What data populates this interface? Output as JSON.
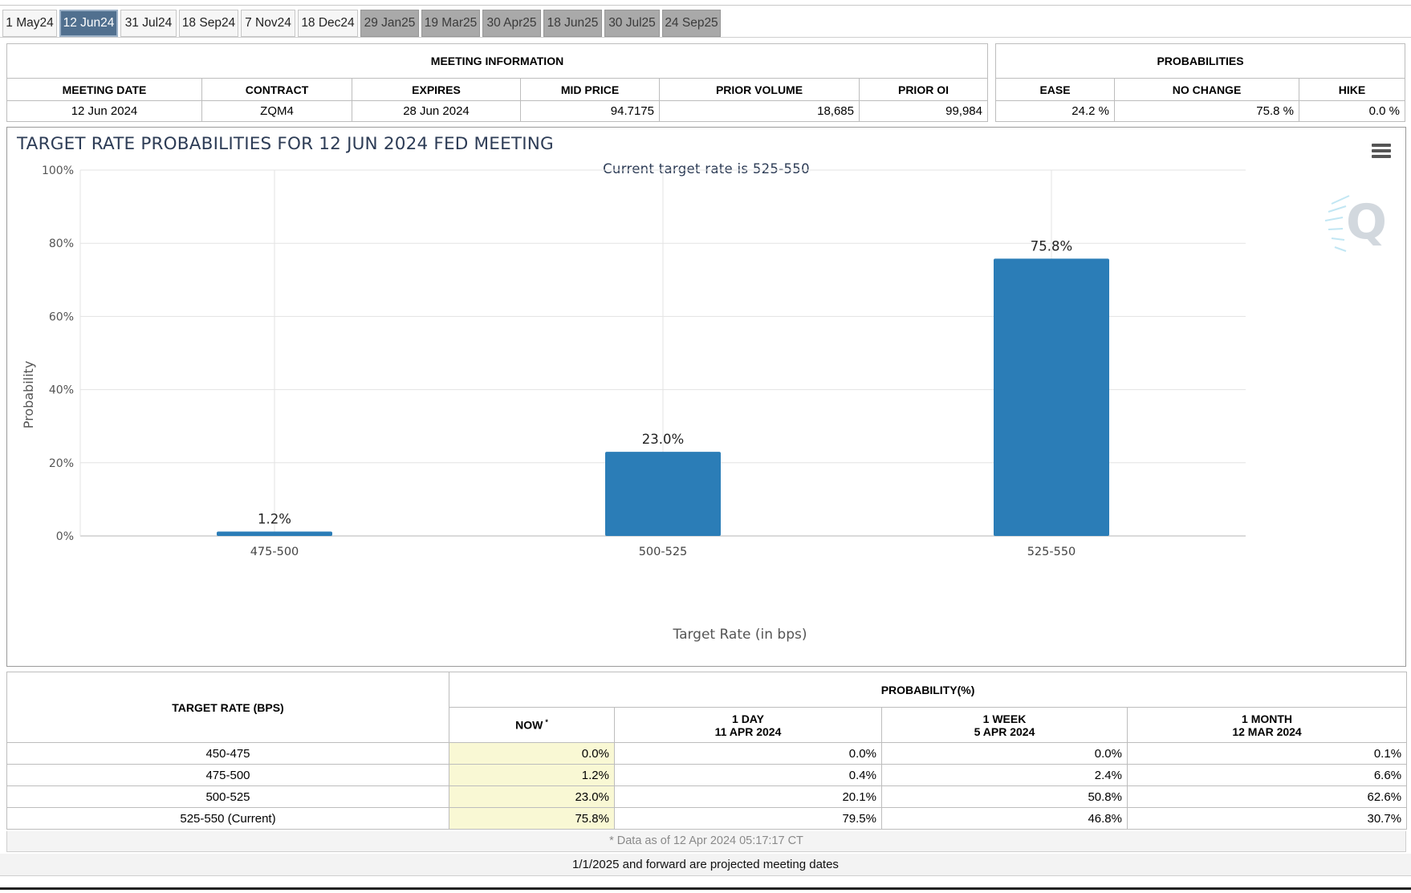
{
  "tabs": [
    {
      "label": "1 May24",
      "state": "normal"
    },
    {
      "label": "12 Jun24",
      "state": "active"
    },
    {
      "label": "31 Jul24",
      "state": "normal"
    },
    {
      "label": "18 Sep24",
      "state": "normal"
    },
    {
      "label": "7 Nov24",
      "state": "normal"
    },
    {
      "label": "18 Dec24",
      "state": "normal"
    },
    {
      "label": "29 Jan25",
      "state": "future"
    },
    {
      "label": "19 Mar25",
      "state": "future"
    },
    {
      "label": "30 Apr25",
      "state": "future"
    },
    {
      "label": "18 Jun25",
      "state": "future"
    },
    {
      "label": "30 Jul25",
      "state": "future"
    },
    {
      "label": "24 Sep25",
      "state": "future"
    }
  ],
  "meeting_info": {
    "title": "MEETING INFORMATION",
    "headers": [
      "MEETING DATE",
      "CONTRACT",
      "EXPIRES",
      "MID PRICE",
      "PRIOR VOLUME",
      "PRIOR OI"
    ],
    "values": [
      "12 Jun 2024",
      "ZQM4",
      "28 Jun 2024",
      "94.7175",
      "18,685",
      "99,984"
    ]
  },
  "probabilities": {
    "title": "PROBABILITIES",
    "headers": [
      "EASE",
      "NO CHANGE",
      "HIKE"
    ],
    "values": [
      "24.2 %",
      "75.8 %",
      "0.0 %"
    ]
  },
  "chart": {
    "title": "TARGET RATE PROBABILITIES FOR 12 JUN 2024 FED MEETING",
    "subtitle": "Current target rate is 525-550",
    "menu_icon": "hamburger-menu-icon",
    "watermark_icon": "cme-q-logo-icon"
  },
  "chart_data": {
    "type": "bar",
    "title": "TARGET RATE PROBABILITIES FOR 12 JUN 2024 FED MEETING",
    "subtitle": "Current target rate is 525-550",
    "categories": [
      "475-500",
      "500-525",
      "525-550"
    ],
    "values": [
      1.2,
      23.0,
      75.8
    ],
    "data_labels": [
      "1.2%",
      "23.0%",
      "75.8%"
    ],
    "xlabel": "Target Rate (in bps)",
    "ylabel": "Probability",
    "ylim": [
      0,
      100
    ],
    "yticks": [
      "0%",
      "20%",
      "40%",
      "60%",
      "80%",
      "100%"
    ],
    "grid": true,
    "bar_color": "#2b7db7"
  },
  "prob_table": {
    "target_header": "TARGET RATE (BPS)",
    "prob_header": "PROBABILITY(%)",
    "col_now": "NOW",
    "col_now_mark": "*",
    "col_1day": {
      "label": "1 DAY",
      "date": "11 APR 2024"
    },
    "col_1week": {
      "label": "1 WEEK",
      "date": "5 APR 2024"
    },
    "col_1month": {
      "label": "1 MONTH",
      "date": "12 MAR 2024"
    },
    "rows": [
      {
        "rate": "450-475",
        "now": "0.0%",
        "day": "0.0%",
        "week": "0.0%",
        "month": "0.1%"
      },
      {
        "rate": "475-500",
        "now": "1.2%",
        "day": "0.4%",
        "week": "2.4%",
        "month": "6.6%"
      },
      {
        "rate": "500-525",
        "now": "23.0%",
        "day": "20.1%",
        "week": "50.8%",
        "month": "62.6%"
      },
      {
        "rate": "525-550 (Current)",
        "now": "75.8%",
        "day": "79.5%",
        "week": "46.8%",
        "month": "30.7%"
      }
    ]
  },
  "footnote": "* Data as of 12 Apr 2024 05:17:17 CT",
  "projected_note": "1/1/2025 and forward are projected meeting dates"
}
